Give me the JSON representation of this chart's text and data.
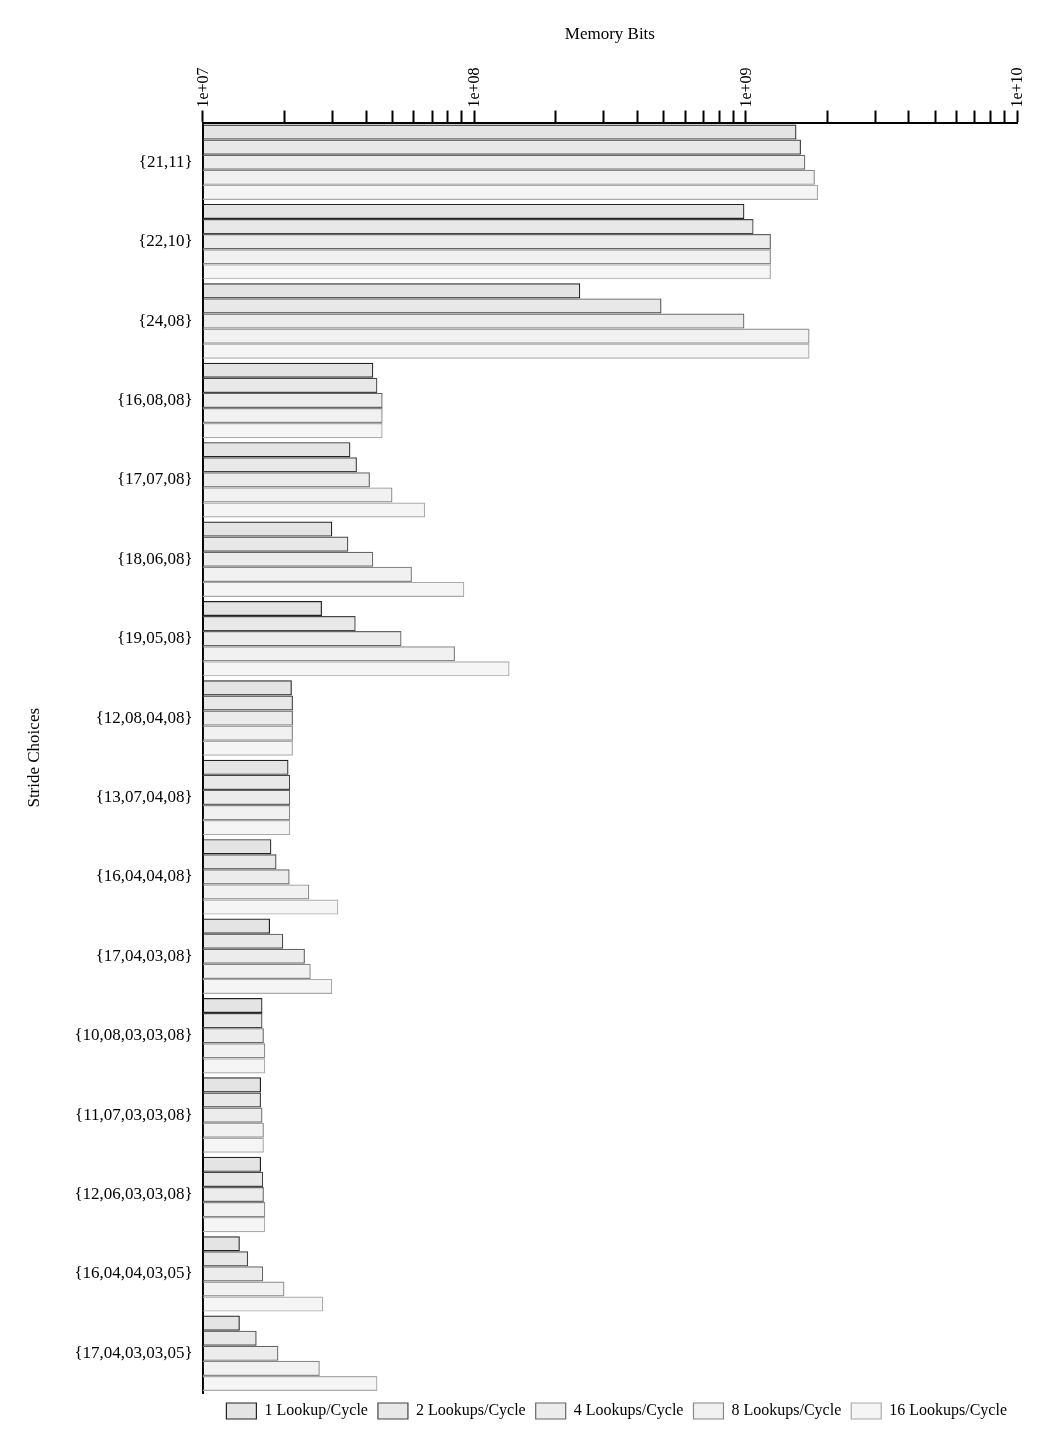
{
  "chart_data": {
    "type": "bar",
    "orientation": "horizontal",
    "xlabel": "Memory Bits",
    "ylabel": "Stride Choices",
    "categories": [
      "{21,11}",
      "{22,10}",
      "{24,08}",
      "{16,08,08}",
      "{17,07,08}",
      "{18,06,08}",
      "{19,05,08}",
      "{12,08,04,08}",
      "{13,07,04,08}",
      "{16,04,04,08}",
      "{17,04,03,08}",
      "{10,08,03,03,08}",
      "{11,07,03,03,08}",
      "{12,06,03,03,08}",
      "{16,04,04,03,05}",
      "{17,04,03,03,05}"
    ],
    "series": [
      {
        "name": "1 Lookup/Cycle",
        "color": "#222222",
        "values": [
          1540000000.0,
          990000000.0,
          246000000.0,
          42500000.0,
          35000000.0,
          30000000.0,
          27500000.0,
          21300000.0,
          20700000.0,
          17900000.0,
          17700000.0,
          16600000.0,
          16400000.0,
          16400000.0,
          13700000.0,
          13700000.0
        ]
      },
      {
        "name": "2 Lookups/Cycle",
        "color": "#444444",
        "values": [
          1600000000.0,
          1070000000.0,
          490000000.0,
          44000000.0,
          37000000.0,
          34400000.0,
          36600000.0,
          21500000.0,
          21000000.0,
          18700000.0,
          19800000.0,
          16600000.0,
          16400000.0,
          16700000.0,
          14700000.0,
          15800000.0
        ]
      },
      {
        "name": "4 Lookups/Cycle",
        "color": "#666666",
        "values": [
          1660000000.0,
          1240000000.0,
          990000000.0,
          46000000.0,
          41300000.0,
          42500000.0,
          54000000.0,
          21500000.0,
          21000000.0,
          20900000.0,
          23800000.0,
          16800000.0,
          16600000.0,
          16800000.0,
          16700000.0,
          19000000.0
        ]
      },
      {
        "name": "8 Lookups/Cycle",
        "color": "#888888",
        "values": [
          1800000000.0,
          1240000000.0,
          1720000000.0,
          46000000.0,
          50000000.0,
          59000000.0,
          85000000.0,
          21500000.0,
          21000000.0,
          24700000.0,
          25000000.0,
          17000000.0,
          16800000.0,
          17000000.0,
          20000000.0,
          27000000.0
        ]
      },
      {
        "name": "16 Lookups/Cycle",
        "color": "#aaaaaa",
        "values": [
          1850000000.0,
          1240000000.0,
          1720000000.0,
          46000000.0,
          66000000.0,
          92000000.0,
          135000000.0,
          21500000.0,
          21000000.0,
          31600000.0,
          30000000.0,
          17000000.0,
          16800000.0,
          17000000.0,
          27800000.0,
          44000000.0
        ]
      }
    ],
    "log": "x",
    "xlim": [
      10000000.0,
      10000000000.0
    ],
    "xticks": [
      {
        "value": 10000000.0,
        "label": "1e+07"
      },
      {
        "value": 20000000.0,
        "label": null
      },
      {
        "value": 30000000.0,
        "label": null
      },
      {
        "value": 40000000.0,
        "label": null
      },
      {
        "value": 50000000.0,
        "label": null
      },
      {
        "value": 60000000.0,
        "label": null
      },
      {
        "value": 70000000.0,
        "label": null
      },
      {
        "value": 80000000.0,
        "label": null
      },
      {
        "value": 90000000.0,
        "label": null
      },
      {
        "value": 100000000.0,
        "label": "1e+08"
      },
      {
        "value": 200000000.0,
        "label": null
      },
      {
        "value": 300000000.0,
        "label": null
      },
      {
        "value": 400000000.0,
        "label": null
      },
      {
        "value": 500000000.0,
        "label": null
      },
      {
        "value": 600000000.0,
        "label": null
      },
      {
        "value": 700000000.0,
        "label": null
      },
      {
        "value": 800000000.0,
        "label": null
      },
      {
        "value": 900000000.0,
        "label": null
      },
      {
        "value": 1000000000.0,
        "label": "1e+09"
      },
      {
        "value": 2000000000.0,
        "label": null
      },
      {
        "value": 3000000000.0,
        "label": null
      },
      {
        "value": 4000000000.0,
        "label": null
      },
      {
        "value": 5000000000.0,
        "label": null
      },
      {
        "value": 6000000000.0,
        "label": null
      },
      {
        "value": 7000000000.0,
        "label": null
      },
      {
        "value": 8000000000.0,
        "label": null
      },
      {
        "value": 9000000000.0,
        "label": null
      },
      {
        "value": 10000000000.0,
        "label": "1e+10"
      }
    ],
    "grid": false,
    "legend": "bottom right"
  }
}
